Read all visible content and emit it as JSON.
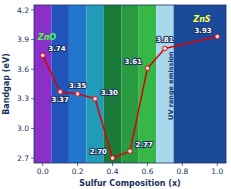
{
  "chart_data": {
    "type": "line",
    "x": [
      0.0,
      0.1,
      0.2,
      0.3,
      0.4,
      0.5,
      0.6,
      0.7,
      1.0
    ],
    "values": [
      3.74,
      3.37,
      3.35,
      3.3,
      2.7,
      2.77,
      3.61,
      3.81,
      3.93
    ],
    "value_labels": [
      "3.74",
      "3.37",
      "3.35",
      "3.30",
      "2.70",
      "2.77",
      "3.61",
      "3.81",
      "3.93"
    ],
    "data_labels": true,
    "color": "#DD0000",
    "marker": "circle",
    "grid": false,
    "xlabel": "Sulfur Composition (x)",
    "ylabel": "Bandgap (eV)",
    "xlim": [
      -0.05,
      1.05
    ],
    "ylim": [
      2.65,
      4.25
    ],
    "xticks": [
      {
        "value": 0,
        "label": "0.0"
      },
      0.2,
      0.4,
      0.6,
      0.8,
      {
        "value": 1,
        "label": "1.0"
      }
    ],
    "yticks": [
      2.7,
      {
        "value": 3,
        "label": "3.0"
      },
      3.3,
      3.6,
      3.9,
      4.2
    ],
    "bands": [
      {
        "xmin": -0.05,
        "xmax": 0.05,
        "color": "#8B2FC9"
      },
      {
        "xmin": 0.05,
        "xmax": 0.15,
        "color": "#2255BB"
      },
      {
        "xmin": 0.15,
        "xmax": 0.25,
        "color": "#2277CC"
      },
      {
        "xmin": 0.25,
        "xmax": 0.35,
        "color": "#229BB8"
      },
      {
        "xmin": 0.35,
        "xmax": 0.45,
        "color": "#1A7A3A"
      },
      {
        "xmin": 0.45,
        "xmax": 0.55,
        "color": "#2A9A40"
      },
      {
        "xmin": 0.55,
        "xmax": 0.65,
        "color": "#35B845"
      },
      {
        "xmin": 0.65,
        "xmax": 0.75,
        "color": "#A8D8EC"
      },
      {
        "xmin": 0.75,
        "xmax": 1.05,
        "color": "#1A4A9A"
      }
    ],
    "annotations": [
      {
        "text": "ZnO",
        "color": "#44FF44"
      },
      {
        "text": "ZnS",
        "color": "#FFFF44"
      },
      {
        "text": "UV range emission",
        "color": "#1A3060"
      }
    ]
  }
}
